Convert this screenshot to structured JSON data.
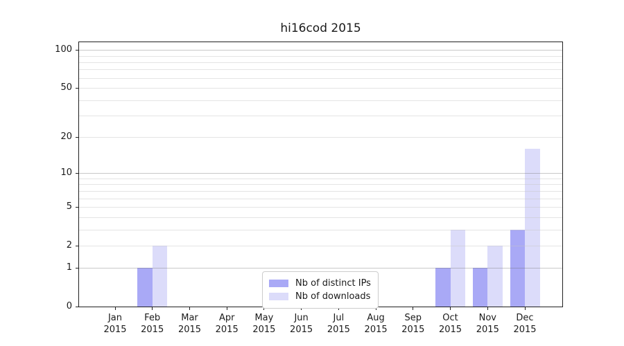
{
  "chart_data": {
    "type": "bar",
    "title": "hi16cod 2015",
    "categories": [
      "Jan",
      "Feb",
      "Mar",
      "Apr",
      "May",
      "Jun",
      "Jul",
      "Aug",
      "Sep",
      "Oct",
      "Nov",
      "Dec"
    ],
    "year_label": "2015",
    "series": [
      {
        "name": "Nb of distinct IPs",
        "color": "#a9a9f6",
        "values": [
          0,
          1,
          0,
          0,
          0,
          0,
          0,
          0,
          0,
          1,
          1,
          3
        ]
      },
      {
        "name": "Nb of downloads",
        "color": "#dcdcfa",
        "values": [
          0,
          2,
          0,
          0,
          0,
          0,
          0,
          0,
          0,
          3,
          2,
          16
        ]
      }
    ],
    "yticks": [
      0,
      1,
      2,
      5,
      10,
      20,
      50,
      100
    ],
    "yticklabels": [
      "0",
      "1",
      "2",
      "5",
      "10",
      "20",
      "50",
      "100"
    ],
    "ylim": [
      0,
      115
    ],
    "yscale": "log10(1+v)",
    "grid": {
      "major": [
        1,
        10,
        100
      ],
      "minor": [
        2,
        3,
        4,
        5,
        6,
        7,
        8,
        9,
        20,
        30,
        40,
        50,
        60,
        70,
        80,
        90
      ]
    },
    "legend": {
      "position": "inside-bottom-center",
      "entries": [
        "Nb of distinct IPs",
        "Nb of downloads"
      ]
    },
    "colors": {
      "spine": "#1f1f1f",
      "major_grid": "#c6c6c6",
      "minor_grid": "#e4e4e4",
      "background": "#ffffff"
    }
  }
}
